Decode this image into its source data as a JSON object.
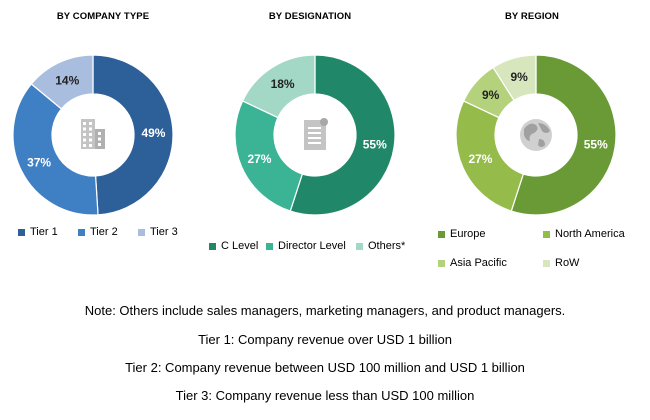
{
  "colors": {
    "tier1": "#2d5f98",
    "tier2": "#3f7fc4",
    "tier3": "#a9bedf",
    "clevel": "#208868",
    "director": "#3bb496",
    "others": "#a3d8c6",
    "europe": "#6a9a36",
    "north_america": "#95bc4a",
    "asia_pacific": "#b4d17c",
    "row": "#d8e6bd"
  },
  "chart_data": [
    {
      "type": "pie",
      "title": "BY COMPANY TYPE",
      "center_icon": "building-icon",
      "categories": [
        "Tier 1",
        "Tier 2",
        "Tier 3"
      ],
      "values": [
        49,
        37,
        14
      ],
      "labels": [
        "49%",
        "37%",
        "14%"
      ],
      "colors": [
        "#2d5f98",
        "#3f7fc4",
        "#a9bedf"
      ],
      "legend_position": "bottom"
    },
    {
      "type": "pie",
      "title": "BY DESIGNATION",
      "center_icon": "document-icon",
      "categories": [
        "C Level",
        "Director Level",
        "Others*"
      ],
      "values": [
        55,
        27,
        18
      ],
      "labels": [
        "55%",
        "27%",
        "18%"
      ],
      "colors": [
        "#208868",
        "#3bb496",
        "#a3d8c6"
      ],
      "legend_position": "bottom"
    },
    {
      "type": "pie",
      "title": "BY REGION",
      "center_icon": "globe-icon",
      "categories": [
        "Europe",
        "North America",
        "Asia Pacific",
        "RoW"
      ],
      "values": [
        55,
        27,
        9,
        9
      ],
      "labels": [
        "55%",
        "27%",
        "9%",
        "9%"
      ],
      "colors": [
        "#6a9a36",
        "#95bc4a",
        "#b4d17c",
        "#d8e6bd"
      ],
      "legend_position": "bottom"
    }
  ],
  "notes": [
    "Note: Others include sales managers, marketing managers, and product managers.",
    "Tier 1: Company revenue over USD 1 billion",
    "Tier 2: Company revenue between USD 100 million and USD 1 billion",
    "Tier 3: Company revenue less than USD 100 million"
  ]
}
